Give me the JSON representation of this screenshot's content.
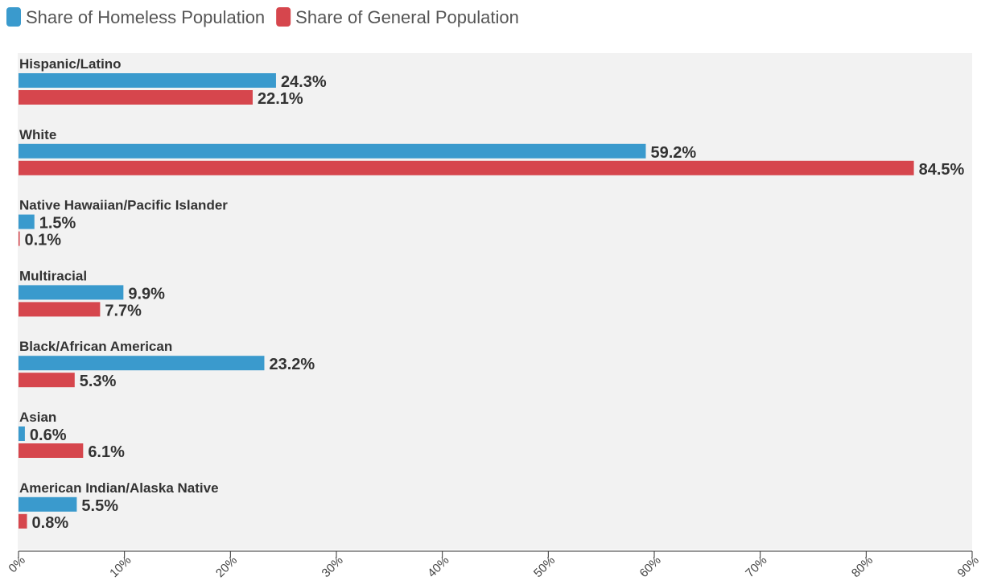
{
  "chart_data": {
    "type": "bar",
    "orientation": "horizontal",
    "title": "",
    "xlabel": "",
    "ylabel": "",
    "xlim": [
      0,
      90
    ],
    "grid": false,
    "legend_position": "top-left",
    "categories": [
      "Hispanic/Latino",
      "White",
      "Native Hawaiian/Pacific Islander",
      "Multiracial",
      "Black/African American",
      "Asian",
      "American Indian/Alaska Native"
    ],
    "series": [
      {
        "name": "Share of Homeless Population",
        "color": "#3a9acd",
        "values": [
          24.3,
          59.2,
          1.5,
          9.9,
          23.2,
          0.6,
          5.5
        ],
        "labels": [
          "24.3%",
          "59.2%",
          "1.5%",
          "9.9%",
          "23.2%",
          "0.6%",
          "5.5%"
        ]
      },
      {
        "name": "Share of General Population",
        "color": "#d6464d",
        "values": [
          22.1,
          84.5,
          0.1,
          7.7,
          5.3,
          6.1,
          0.8
        ],
        "labels": [
          "22.1%",
          "84.5%",
          "0.1%",
          "7.7%",
          "5.3%",
          "6.1%",
          "0.8%"
        ]
      }
    ],
    "x_ticks": [
      0,
      10,
      20,
      30,
      40,
      50,
      60,
      70,
      80,
      90
    ],
    "x_tick_labels": [
      "0%",
      "10%",
      "20%",
      "30%",
      "40%",
      "50%",
      "60%",
      "70%",
      "80%",
      "90%"
    ]
  }
}
